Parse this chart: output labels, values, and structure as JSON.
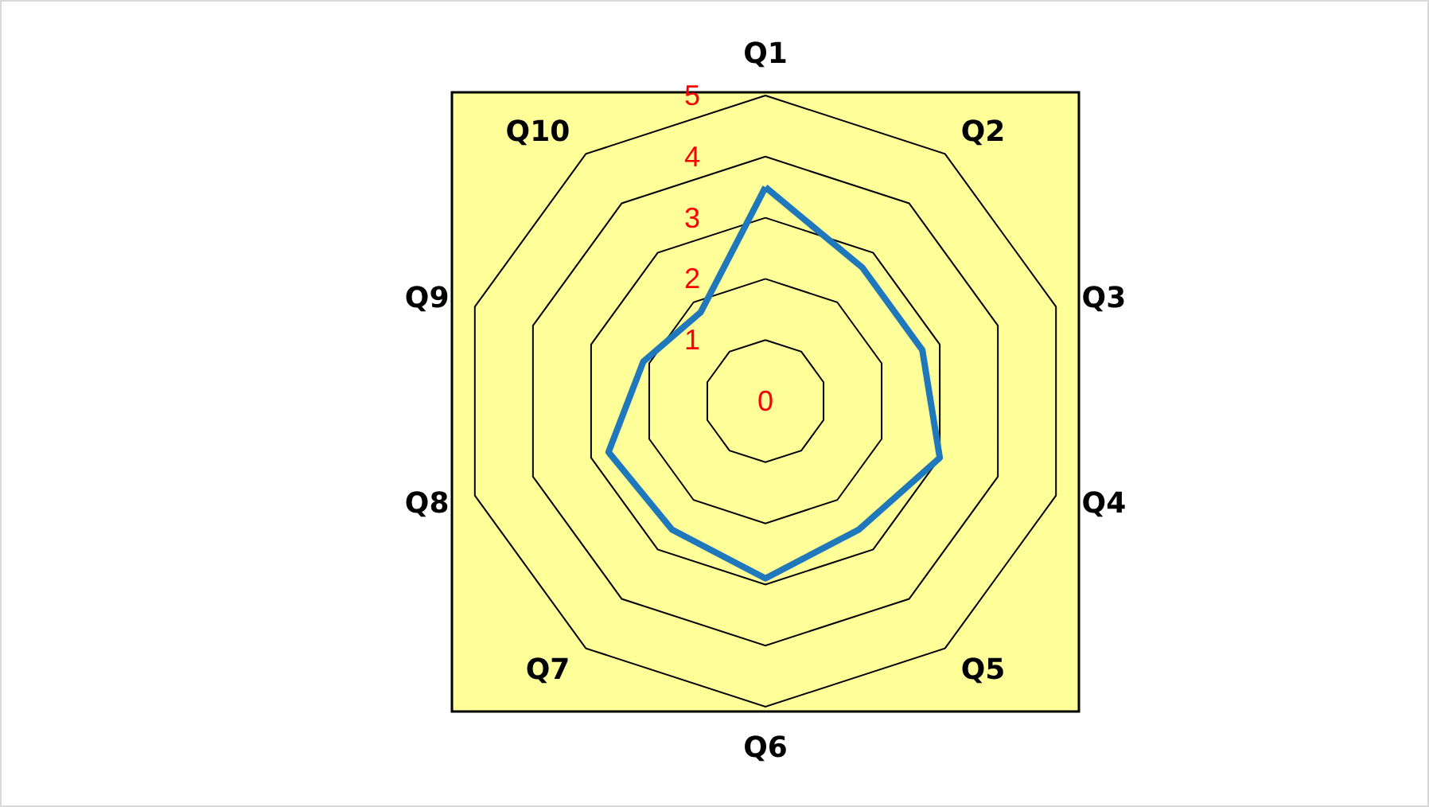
{
  "chart_data": {
    "type": "radar",
    "categories": [
      "Q1",
      "Q2",
      "Q3",
      "Q4",
      "Q5",
      "Q6",
      "Q7",
      "Q8",
      "Q9",
      "Q10"
    ],
    "series": [
      {
        "color": "#1f77bc",
        "values": [
          3.5,
          2.7,
          2.7,
          3,
          2.6,
          2.9,
          2.6,
          2.7,
          2.1,
          1.8
        ]
      }
    ],
    "ylim": [
      0,
      5
    ],
    "yticks": [
      0,
      1,
      2,
      3,
      4,
      5
    ],
    "grid": true,
    "marker": "none",
    "line_style": "solid"
  }
}
